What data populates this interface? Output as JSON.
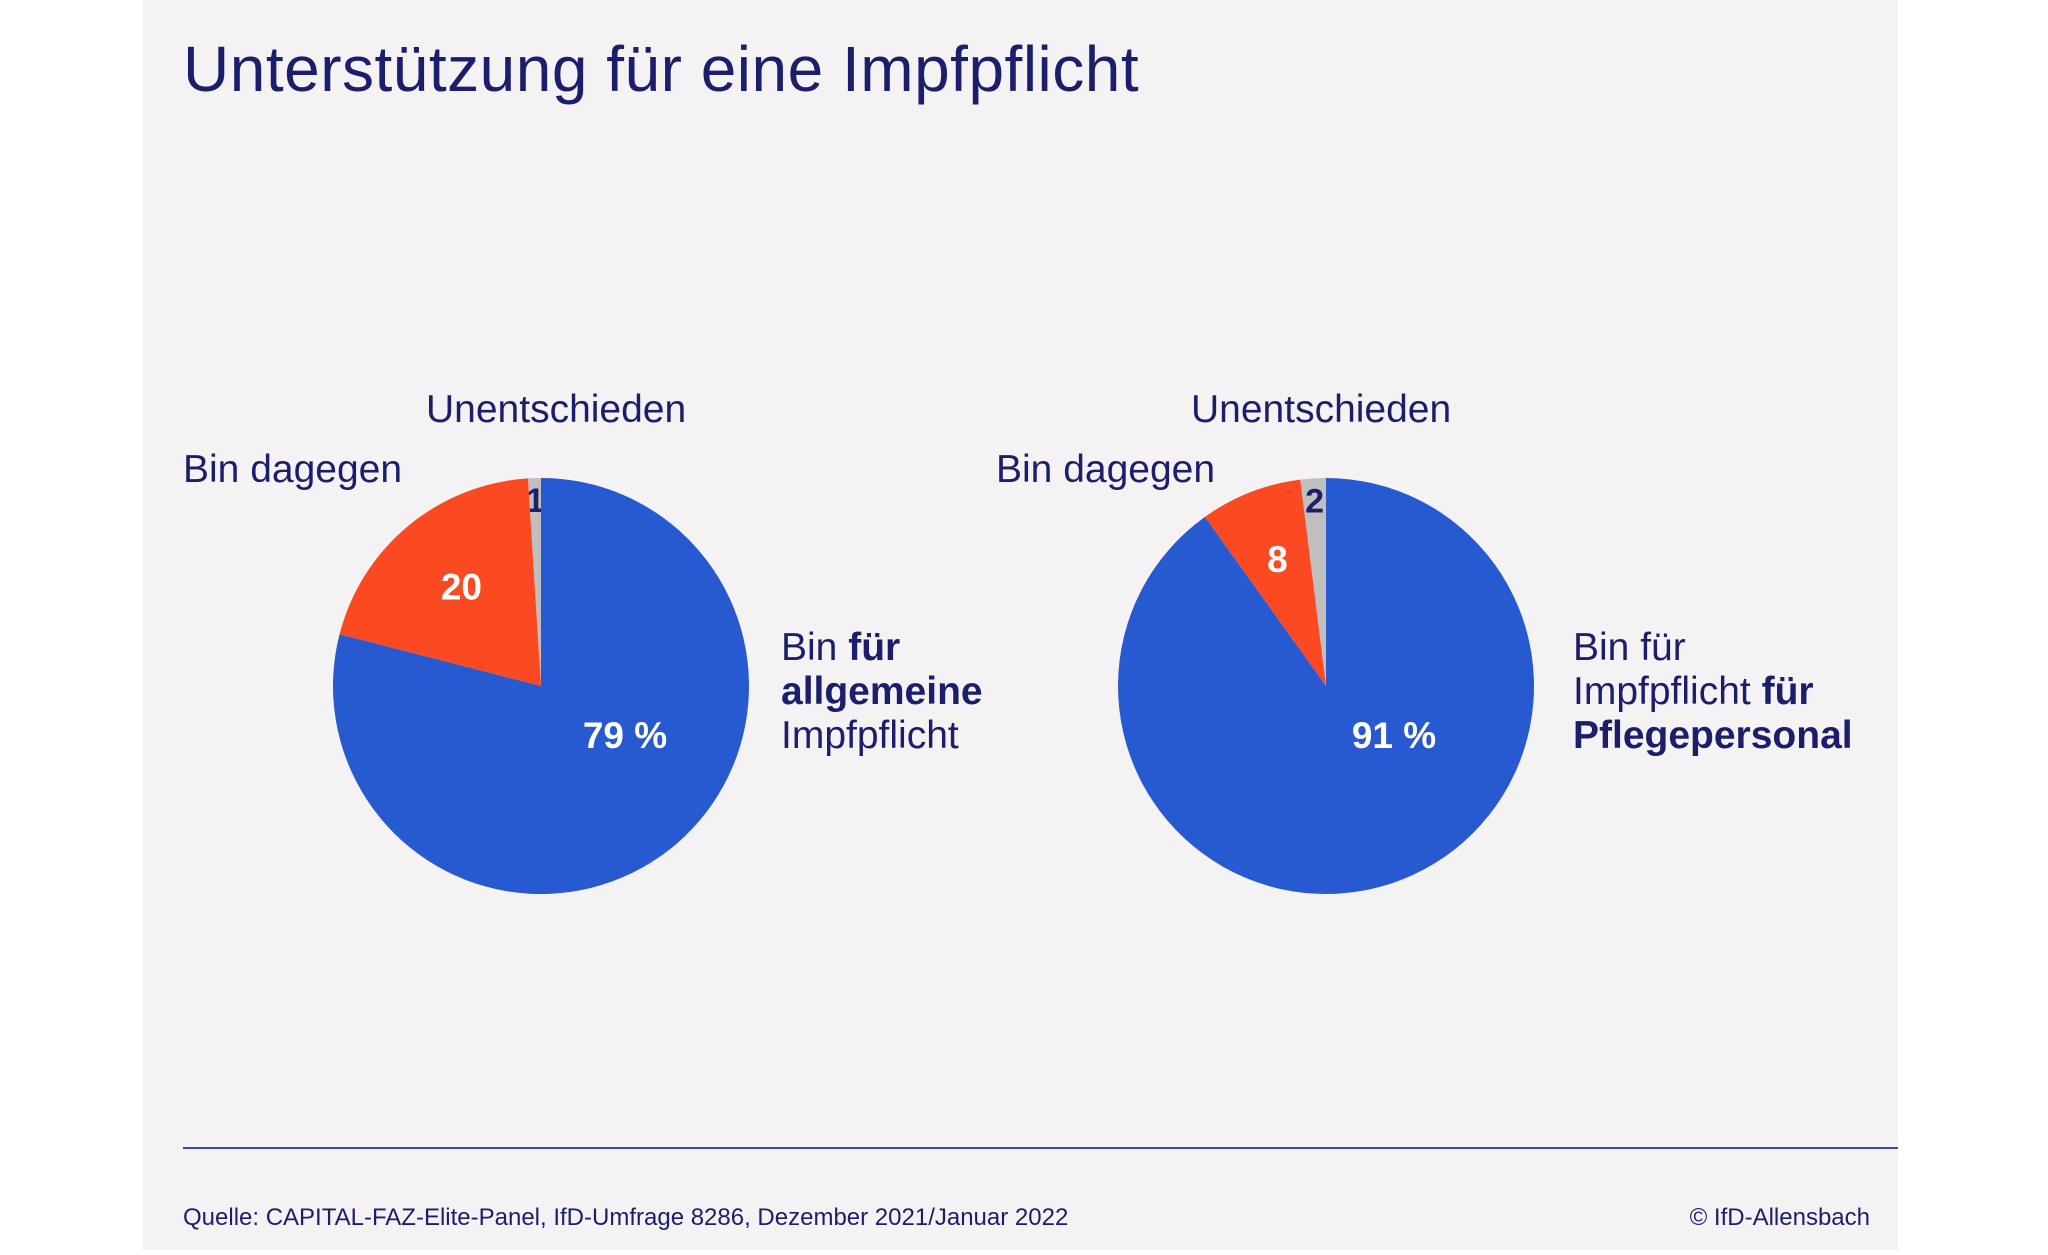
{
  "title": "Unterstützung für eine Impfpflicht",
  "colors": {
    "background": "#f5f2f3",
    "text": "#1b1f6b",
    "blue": "#2759d0",
    "red": "#fb4a22",
    "gray": "#c0bfbf",
    "line": "#3f4ba6"
  },
  "chart_data": [
    {
      "type": "pie",
      "slices": [
        {
          "key": "undecided",
          "label": "Unentschieden",
          "value": 1,
          "value_label": "1",
          "color": "#c0bfbf"
        },
        {
          "key": "against",
          "label": "Bin dagegen",
          "value": 20,
          "value_label": "20",
          "color": "#fb4a22"
        },
        {
          "key": "for",
          "label": "",
          "value": 79,
          "value_label": "79 %",
          "color": "#2759d0"
        }
      ],
      "legend_lines": [
        [
          {
            "text": "Bin ",
            "bold": false
          },
          {
            "text": "für",
            "bold": true
          }
        ],
        [
          {
            "text": "allgemeine",
            "bold": true
          }
        ],
        [
          {
            "text": "Impfpflicht",
            "bold": false
          }
        ]
      ]
    },
    {
      "type": "pie",
      "slices": [
        {
          "key": "undecided",
          "label": "Unentschieden",
          "value": 2,
          "value_label": "2",
          "color": "#c0bfbf"
        },
        {
          "key": "against",
          "label": "Bin dagegen",
          "value": 8,
          "value_label": "8",
          "color": "#fb4a22"
        },
        {
          "key": "for",
          "label": "",
          "value": 91,
          "value_label": "91 %",
          "color": "#2759d0"
        }
      ],
      "legend_lines": [
        [
          {
            "text": "Bin für",
            "bold": false
          }
        ],
        [
          {
            "text": "Impfpflicht ",
            "bold": false
          },
          {
            "text": "für",
            "bold": true
          }
        ],
        [
          {
            "text": "Pflegepersonal",
            "bold": true
          }
        ]
      ]
    }
  ],
  "footer": {
    "source": "Quelle: CAPITAL-FAZ-Elite-Panel, IfD-Umfrage 8286, Dezember 2021/Januar 2022",
    "copyright": "© IfD-Allensbach"
  }
}
